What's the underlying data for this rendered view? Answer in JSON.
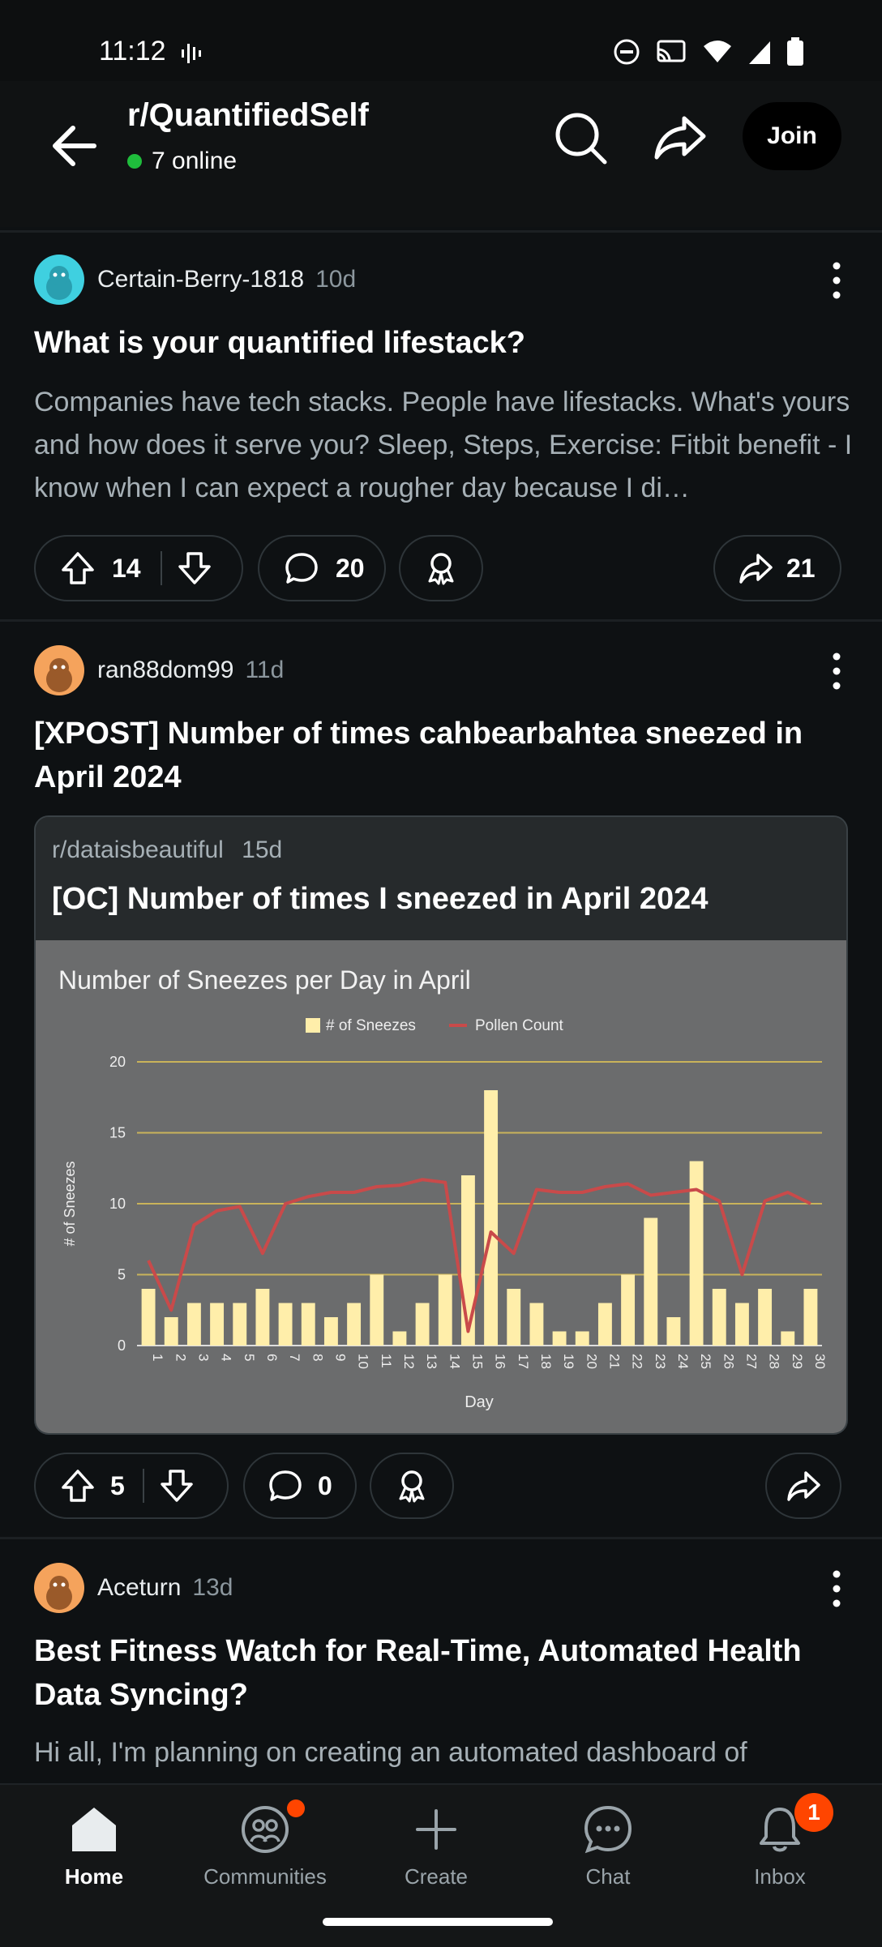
{
  "status_bar": {
    "time": "11:12"
  },
  "header": {
    "subreddit": "r/QuantifiedSelf",
    "online": "7 online",
    "join_label": "Join"
  },
  "posts": [
    {
      "author": "Certain-Berry-1818",
      "age": "10d",
      "title": "What is your quantified lifestack?",
      "body": "Companies have tech stacks. People have lifestacks. What's yours and how does it serve you? Sleep, Steps, Exercise: Fitbit benefit - I know when I can expect a rougher day because I di…",
      "upvotes": "14",
      "comments": "20",
      "shares": "21"
    },
    {
      "author": "ran88dom99",
      "age": "11d",
      "title": "[XPOST] Number of times cahbearbahtea sneezed in April 2024",
      "embed": {
        "subreddit": "r/dataisbeautiful",
        "age": "15d",
        "title": "[OC] Number of times I sneezed in April 2024"
      },
      "upvotes": "5",
      "comments": "0"
    },
    {
      "author": "Aceturn",
      "age": "13d",
      "title": "Best Fitness Watch for Real-Time, Automated Health Data Syncing?",
      "body": "Hi all, I'm planning on creating an automated dashboard of"
    }
  ],
  "chart_data": {
    "type": "bar",
    "title": "Number of Sneezes per Day in April",
    "xlabel": "Day",
    "ylabel": "# of Sneezes",
    "ylim": [
      0,
      20
    ],
    "yticks": [
      0,
      5,
      10,
      15,
      20
    ],
    "legend_placement": "top",
    "grid": true,
    "categories": [
      "1",
      "2",
      "3",
      "4",
      "5",
      "6",
      "7",
      "8",
      "9",
      "10",
      "11",
      "12",
      "13",
      "14",
      "15",
      "16",
      "17",
      "18",
      "19",
      "20",
      "21",
      "22",
      "23",
      "24",
      "25",
      "26",
      "27",
      "28",
      "29",
      "30"
    ],
    "series": [
      {
        "name": "# of Sneezes",
        "type": "bar",
        "color": "#ffeeaa",
        "values": [
          4,
          2,
          3,
          3,
          3,
          4,
          3,
          3,
          2,
          3,
          5,
          1,
          3,
          5,
          12,
          18,
          4,
          3,
          1,
          1,
          3,
          5,
          9,
          2,
          13,
          4,
          3,
          4,
          1,
          4
        ]
      },
      {
        "name": "Pollen Count",
        "type": "line",
        "color": "#c94a4a",
        "values": [
          6,
          2.5,
          8.5,
          9.5,
          9.8,
          6.5,
          10,
          10.5,
          10.8,
          10.8,
          11.2,
          11.3,
          11.7,
          11.5,
          1,
          8,
          6.5,
          11,
          10.8,
          10.8,
          11.2,
          11.4,
          10.6,
          10.8,
          11,
          10.2,
          5,
          10.2,
          10.8,
          10
        ]
      }
    ]
  },
  "nav": [
    {
      "label": "Home"
    },
    {
      "label": "Communities"
    },
    {
      "label": "Create"
    },
    {
      "label": "Chat"
    },
    {
      "label": "Inbox",
      "badge": "1"
    }
  ]
}
